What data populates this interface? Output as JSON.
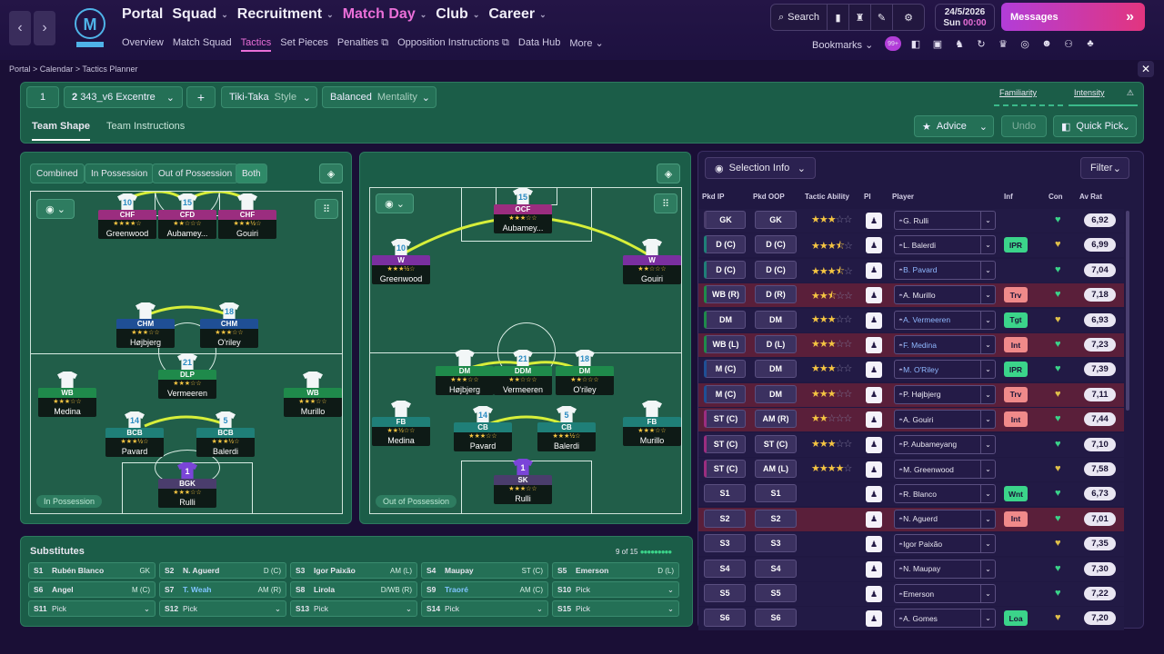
{
  "nav": {
    "main": [
      "Portal",
      "Squad",
      "Recruitment",
      "Match Day",
      "Club",
      "Career"
    ],
    "active_main": "Match Day",
    "sub": [
      "Overview",
      "Match Squad",
      "Tactics",
      "Set Pieces",
      "Penalties",
      "Opposition Instructions",
      "Data Hub",
      "More"
    ],
    "active_sub": "Tactics",
    "search_label": "Search",
    "date": "24/5/2026",
    "day": "Sun",
    "time": "00:00",
    "messages_label": "Messages",
    "bookmarks_label": "Bookmarks",
    "bookmarks_badge": "99+"
  },
  "breadcrumb": [
    "Portal",
    "Calendar",
    "Tactics Planner"
  ],
  "tactic": {
    "slot": "1",
    "number": "2",
    "formation": "343_v6 Excentre",
    "add_label": "+",
    "style_value": "Tiki-Taka",
    "style_label": "Style",
    "mentality_value": "Balanced",
    "mentality_label": "Mentality",
    "familiarity_label": "Familiarity",
    "intensity_label": "Intensity",
    "tabs": [
      "Team Shape",
      "Team Instructions"
    ],
    "active_tab": "Team Shape",
    "advice_label": "Advice",
    "undo_label": "Undo",
    "quick_pick_label": "Quick Pick"
  },
  "possession": {
    "toggles": [
      "Combined",
      "In Possession",
      "Out of Possession",
      "Both"
    ],
    "active_toggle": "Both",
    "in_label": "In Possession",
    "out_label": "Out of Possession"
  },
  "pitch_in": [
    {
      "num": "10",
      "role": "CHF",
      "stars": "★★★★☆",
      "name": "Greenwood",
      "color": "#9b2d7f"
    },
    {
      "num": "15",
      "role": "CFD",
      "stars": "★★☆☆☆",
      "name": "Aubamey...",
      "color": "#9b2d7f"
    },
    {
      "num": "",
      "role": "CHF",
      "stars": "★★★½☆",
      "name": "Gouiri",
      "color": "#9b2d7f"
    },
    {
      "num": "",
      "role": "CHM",
      "stars": "★★★☆☆",
      "name": "Højbjerg",
      "color": "#1f4f95"
    },
    {
      "num": "18",
      "role": "CHM",
      "stars": "★★★☆☆",
      "name": "O'riley",
      "color": "#1f4f95"
    },
    {
      "num": "",
      "role": "WB",
      "stars": "★★★☆☆",
      "name": "Medina",
      "color": "#1f8a4b"
    },
    {
      "num": "21",
      "role": "DLP",
      "stars": "★★★☆☆",
      "name": "Vermeeren",
      "color": "#1f8a4b"
    },
    {
      "num": "",
      "role": "WB",
      "stars": "★★★☆☆",
      "name": "Murillo",
      "color": "#1f8a4b"
    },
    {
      "num": "14",
      "role": "BCB",
      "stars": "★★★½☆",
      "name": "Pavard",
      "color": "#1f7f78"
    },
    {
      "num": "5",
      "role": "BCB",
      "stars": "★★★½☆",
      "name": "Balerdi",
      "color": "#1f7f78"
    },
    {
      "num": "1",
      "role": "BGK",
      "stars": "★★★☆☆",
      "name": "Rulli",
      "color": "#4a3d6c"
    }
  ],
  "pitch_out": [
    {
      "num": "15",
      "role": "OCF",
      "stars": "★★★☆☆",
      "name": "Aubamey...",
      "color": "#9b2d7f"
    },
    {
      "num": "10",
      "role": "W",
      "stars": "★★★½☆",
      "name": "Greenwood",
      "color": "#7a2fa0"
    },
    {
      "num": "",
      "role": "W",
      "stars": "★★☆☆☆",
      "name": "Gouiri",
      "color": "#7a2fa0"
    },
    {
      "num": "",
      "role": "DM",
      "stars": "★★★☆☆",
      "name": "Højbjerg",
      "color": "#1f8a4b"
    },
    {
      "num": "21",
      "role": "DDM",
      "stars": "★★☆☆☆",
      "name": "Vermeeren",
      "color": "#1f8a4b"
    },
    {
      "num": "18",
      "role": "DM",
      "stars": "★★☆☆☆",
      "name": "O'riley",
      "color": "#1f8a4b"
    },
    {
      "num": "",
      "role": "FB",
      "stars": "★★½☆☆",
      "name": "Medina",
      "color": "#1f7f78"
    },
    {
      "num": "14",
      "role": "CB",
      "stars": "★★★☆☆",
      "name": "Pavard",
      "color": "#1f7f78"
    },
    {
      "num": "5",
      "role": "CB",
      "stars": "★★★½☆",
      "name": "Balerdi",
      "color": "#1f7f78"
    },
    {
      "num": "",
      "role": "FB",
      "stars": "★★★☆☆",
      "name": "Murillo",
      "color": "#1f7f78"
    },
    {
      "num": "1",
      "role": "SK",
      "stars": "★★★☆☆",
      "name": "Rulli",
      "color": "#4a3d6c"
    }
  ],
  "substitutes": {
    "title": "Substitutes",
    "count": "9 of 15",
    "slots": [
      {
        "slot": "S1",
        "name": "Rubén Blanco",
        "pos": "GK"
      },
      {
        "slot": "S2",
        "name": "N. Aguerd",
        "pos": "D (C)"
      },
      {
        "slot": "S3",
        "name": "Igor Paixão",
        "pos": "AM (L)"
      },
      {
        "slot": "S4",
        "name": "Maupay",
        "pos": "ST (C)"
      },
      {
        "slot": "S5",
        "name": "Emerson",
        "pos": "D (L)"
      },
      {
        "slot": "S6",
        "name": "Angel",
        "pos": "M (C)"
      },
      {
        "slot": "S7",
        "name": "T. Weah",
        "pos": "AM (R)"
      },
      {
        "slot": "S8",
        "name": "Lirola",
        "pos": "D/WB (R)"
      },
      {
        "slot": "S9",
        "name": "Traoré",
        "pos": "AM (C)"
      },
      {
        "slot": "S10",
        "name": "Pick",
        "pos": ""
      },
      {
        "slot": "S11",
        "name": "Pick",
        "pos": ""
      },
      {
        "slot": "S12",
        "name": "Pick",
        "pos": ""
      },
      {
        "slot": "S13",
        "name": "Pick",
        "pos": ""
      },
      {
        "slot": "S14",
        "name": "Pick",
        "pos": ""
      },
      {
        "slot": "S15",
        "name": "Pick",
        "pos": ""
      }
    ]
  },
  "selection": {
    "info_label": "Selection Info",
    "filter_label": "Filter",
    "headers": [
      "Pkd IP",
      "Pkd OOP",
      "Tactic Ability",
      "PI",
      "Player",
      "Inf",
      "Con",
      "Av Rat"
    ],
    "rows": [
      {
        "ip": "GK",
        "oop": "GK",
        "stars": 3,
        "player": "G. Rulli",
        "inf": "",
        "rat": "6,92",
        "bg": "#221a45"
      },
      {
        "ip": "D (C)",
        "oop": "D (C)",
        "stars": 3.5,
        "player": "L. Balerdi",
        "inf": "IPR",
        "rat": "6,99",
        "bg": "#221a45"
      },
      {
        "ip": "D (C)",
        "oop": "D (C)",
        "stars": 3.5,
        "player": "B. Pavard",
        "inf": "",
        "rat": "7,04",
        "bg": "#221a45"
      },
      {
        "ip": "WB (R)",
        "oop": "D (R)",
        "stars": 2.5,
        "player": "A. Murillo",
        "inf": "Trv",
        "rat": "7,18",
        "bg": "#5a1f3a"
      },
      {
        "ip": "DM",
        "oop": "DM",
        "stars": 3,
        "player": "A. Vermeeren",
        "inf": "Tgt",
        "rat": "6,93",
        "bg": "#221a45"
      },
      {
        "ip": "WB (L)",
        "oop": "D (L)",
        "stars": 3,
        "player": "F. Medina",
        "inf": "Int",
        "rat": "7,23",
        "bg": "#5a1f3a"
      },
      {
        "ip": "M (C)",
        "oop": "DM",
        "stars": 3,
        "player": "M. O'Riley",
        "inf": "IPR",
        "rat": "7,39",
        "bg": "#221a45"
      },
      {
        "ip": "M (C)",
        "oop": "DM",
        "stars": 3,
        "player": "P. Højbjerg",
        "inf": "Trv",
        "rat": "7,11",
        "bg": "#5a1f3a"
      },
      {
        "ip": "ST (C)",
        "oop": "AM (R)",
        "stars": 2,
        "player": "A. Gouiri",
        "inf": "Int",
        "rat": "7,44",
        "bg": "#5a1f3a"
      },
      {
        "ip": "ST (C)",
        "oop": "ST (C)",
        "stars": 3,
        "player": "P. Aubameyang",
        "inf": "",
        "rat": "7,10",
        "bg": "#221a45"
      },
      {
        "ip": "ST (C)",
        "oop": "AM (L)",
        "stars": 4,
        "player": "M. Greenwood",
        "inf": "",
        "rat": "7,58",
        "bg": "#221a45"
      },
      {
        "ip": "S1",
        "oop": "S1",
        "stars": 0,
        "player": "R. Blanco",
        "inf": "Wnt",
        "rat": "6,73",
        "bg": "#221a45"
      },
      {
        "ip": "S2",
        "oop": "S2",
        "stars": 0,
        "player": "N. Aguerd",
        "inf": "Int",
        "rat": "7,01",
        "bg": "#5a1f3a"
      },
      {
        "ip": "S3",
        "oop": "S3",
        "stars": 0,
        "player": "Igor Paixão",
        "inf": "",
        "rat": "7,35",
        "bg": "#221a45"
      },
      {
        "ip": "S4",
        "oop": "S4",
        "stars": 0,
        "player": "N. Maupay",
        "inf": "",
        "rat": "7,30",
        "bg": "#221a45"
      },
      {
        "ip": "S5",
        "oop": "S5",
        "stars": 0,
        "player": "Emerson",
        "inf": "",
        "rat": "7,22",
        "bg": "#221a45"
      },
      {
        "ip": "S6",
        "oop": "S6",
        "stars": 0,
        "player": "A. Gomes",
        "inf": "Loa",
        "rat": "7,20",
        "bg": "#221a45"
      }
    ]
  }
}
